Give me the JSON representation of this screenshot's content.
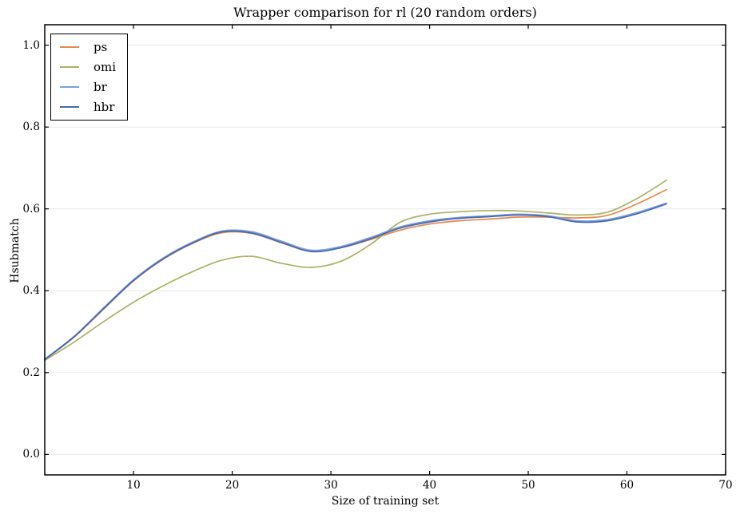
{
  "figure": {
    "background": "#ffffff",
    "axis_color": "#000000",
    "grid_color": "#e9e9e9"
  },
  "chart_data": {
    "type": "line",
    "title": "Wrapper comparison for rl (20 random orders)",
    "xlabel": "Size of training set",
    "ylabel": "Hsubmatch",
    "xlim": [
      1,
      70
    ],
    "ylim": [
      -0.05,
      1.05
    ],
    "x_ticks": [
      10,
      20,
      30,
      40,
      50,
      60,
      70
    ],
    "y_ticks": [
      0.0,
      0.2,
      0.4,
      0.6,
      0.8,
      1.0
    ],
    "grid": "horizontal-only",
    "legend_position": "upper-left",
    "x": [
      1,
      4,
      7,
      10,
      13,
      16,
      19,
      22,
      25,
      28,
      31,
      34,
      37,
      40,
      43,
      46,
      49,
      52,
      55,
      58,
      61,
      64
    ],
    "series": [
      {
        "name": "ps",
        "color": "#E6874B",
        "values": [
          0.232,
          0.287,
          0.356,
          0.424,
          0.477,
          0.516,
          0.542,
          0.54,
          0.517,
          0.496,
          0.505,
          0.525,
          0.548,
          0.563,
          0.571,
          0.575,
          0.58,
          0.58,
          0.578,
          0.584,
          0.612,
          0.647
        ]
      },
      {
        "name": "omi",
        "color": "#ACB164",
        "values": [
          0.23,
          0.275,
          0.325,
          0.372,
          0.412,
          0.447,
          0.475,
          0.484,
          0.467,
          0.457,
          0.472,
          0.513,
          0.567,
          0.587,
          0.593,
          0.596,
          0.595,
          0.59,
          0.585,
          0.592,
          0.625,
          0.67
        ]
      },
      {
        "name": "br",
        "color": "#7DA2D8",
        "values": [
          0.233,
          0.289,
          0.359,
          0.427,
          0.48,
          0.519,
          0.546,
          0.544,
          0.521,
          0.499,
          0.508,
          0.53,
          0.556,
          0.571,
          0.579,
          0.583,
          0.587,
          0.583,
          0.571,
          0.574,
          0.591,
          0.614
        ]
      },
      {
        "name": "hbr",
        "color": "#4668B2",
        "values": [
          0.232,
          0.288,
          0.357,
          0.425,
          0.478,
          0.517,
          0.544,
          0.541,
          0.518,
          0.496,
          0.505,
          0.527,
          0.553,
          0.568,
          0.577,
          0.581,
          0.585,
          0.581,
          0.568,
          0.571,
          0.588,
          0.612
        ]
      }
    ]
  }
}
